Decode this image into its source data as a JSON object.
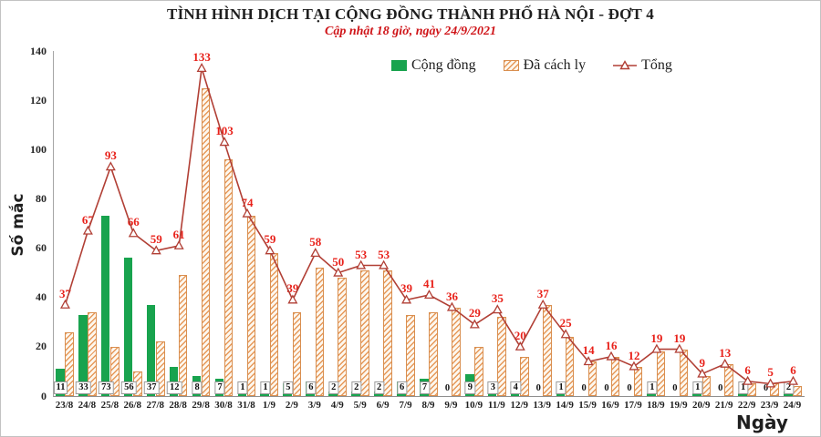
{
  "colors": {
    "community_green": "#18a34e",
    "isolated_orange": "#e6995a",
    "isolated_border": "#d98f50",
    "isolated_bg": "#fdf7ee",
    "total_line_red": "#b13f35",
    "data_label_red": "#e8211a",
    "subtitle_red": "#cf1418",
    "text_black": "#1f1f1f"
  },
  "chart_data": {
    "type": "bar",
    "combo": "grouped bars + line overlay",
    "title": "TÌNH HÌNH DỊCH TẠI CỘNG ĐỒNG THÀNH PHỐ HÀ NỘI - ĐỢT 4",
    "subtitle": "Cập nhật 18 giờ, ngày 24/9/2021",
    "xlabel": "Ngày",
    "ylabel": "Số mắc",
    "ylim": [
      0,
      140
    ],
    "ytick_step": 20,
    "grid": false,
    "legend_position": "top-center",
    "categories": [
      "23/8",
      "24/8",
      "25/8",
      "26/8",
      "27/8",
      "28/8",
      "29/8",
      "30/8",
      "31/8",
      "1/9",
      "2/9",
      "3/9",
      "4/9",
      "5/9",
      "6/9",
      "7/9",
      "8/9",
      "9/9",
      "10/9",
      "11/9",
      "12/9",
      "13/9",
      "14/9",
      "15/9",
      "16/9",
      "17/9",
      "18/9",
      "19/9",
      "20/9",
      "21/9",
      "22/9",
      "23/9",
      "24/9"
    ],
    "series": [
      {
        "name": "Cộng đồng",
        "type": "bar",
        "style": "solid-green",
        "values": [
          11,
          33,
          73,
          56,
          37,
          12,
          8,
          7,
          1,
          1,
          5,
          6,
          2,
          2,
          2,
          6,
          7,
          0,
          9,
          3,
          4,
          0,
          1,
          0,
          0,
          0,
          1,
          0,
          1,
          0,
          1,
          0,
          2
        ]
      },
      {
        "name": "Đã cách ly",
        "type": "bar",
        "style": "orange-hatched",
        "values": [
          26,
          34,
          20,
          10,
          22,
          49,
          125,
          96,
          73,
          58,
          34,
          52,
          48,
          51,
          51,
          33,
          34,
          36,
          20,
          32,
          16,
          37,
          24,
          14,
          16,
          12,
          18,
          19,
          8,
          13,
          5,
          5,
          4
        ]
      },
      {
        "name": "Tổng",
        "type": "line",
        "style": "red-line-open-triangle-markers",
        "values": [
          37,
          67,
          93,
          66,
          59,
          61,
          133,
          103,
          74,
          59,
          39,
          58,
          50,
          53,
          53,
          39,
          41,
          36,
          29,
          35,
          20,
          37,
          25,
          14,
          16,
          12,
          19,
          19,
          9,
          13,
          6,
          5,
          6
        ]
      }
    ]
  }
}
